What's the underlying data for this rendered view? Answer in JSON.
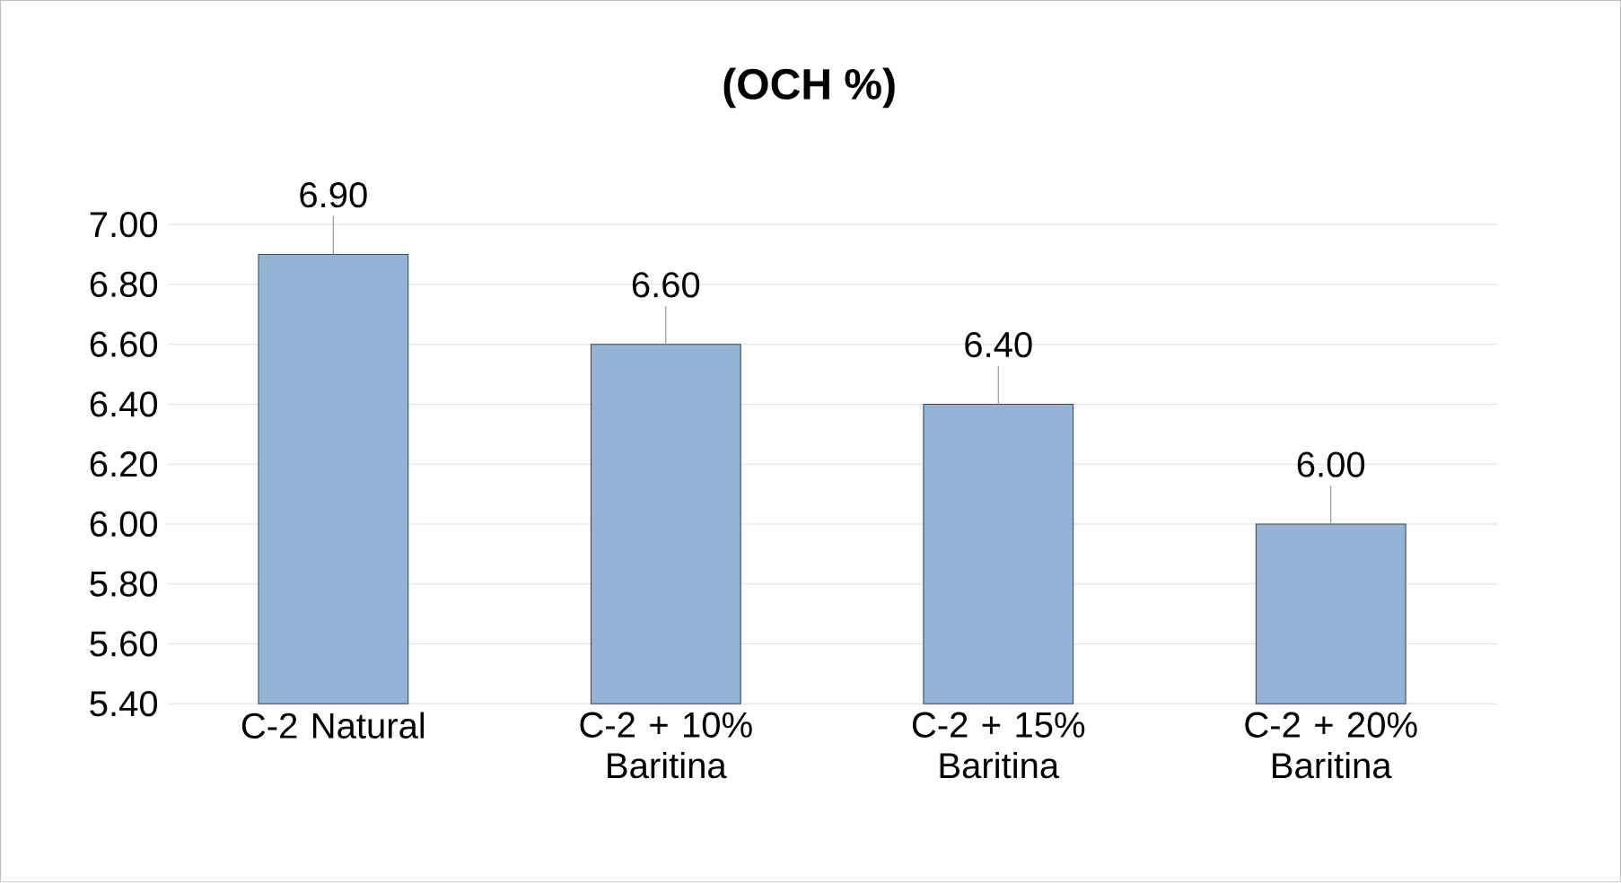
{
  "chart_data": {
    "type": "bar",
    "title": "(OCH %)",
    "categories": [
      "C-2 Natural",
      "C-2 + 10% Baritina",
      "C-2 + 15% Baritina",
      "C-2 + 20% Baritina"
    ],
    "values": [
      6.9,
      6.6,
      6.4,
      6.0
    ],
    "value_labels": [
      "6.90",
      "6.60",
      "6.40",
      "6.00"
    ],
    "color": "#95b3d7",
    "ylim": [
      5.4,
      7.0
    ],
    "yticks": [
      {
        "value": 5.4,
        "label": "5.40"
      },
      {
        "value": 5.6,
        "label": "5.60"
      },
      {
        "value": 5.8,
        "label": "5.80"
      },
      {
        "value": 6.0,
        "label": "6.00"
      },
      {
        "value": 6.2,
        "label": "6.20"
      },
      {
        "value": 6.4,
        "label": "6.40"
      },
      {
        "value": 6.6,
        "label": "6.60"
      },
      {
        "value": 6.8,
        "label": "6.80"
      },
      {
        "value": 7.0,
        "label": "7.00"
      }
    ],
    "grid": "y"
  }
}
